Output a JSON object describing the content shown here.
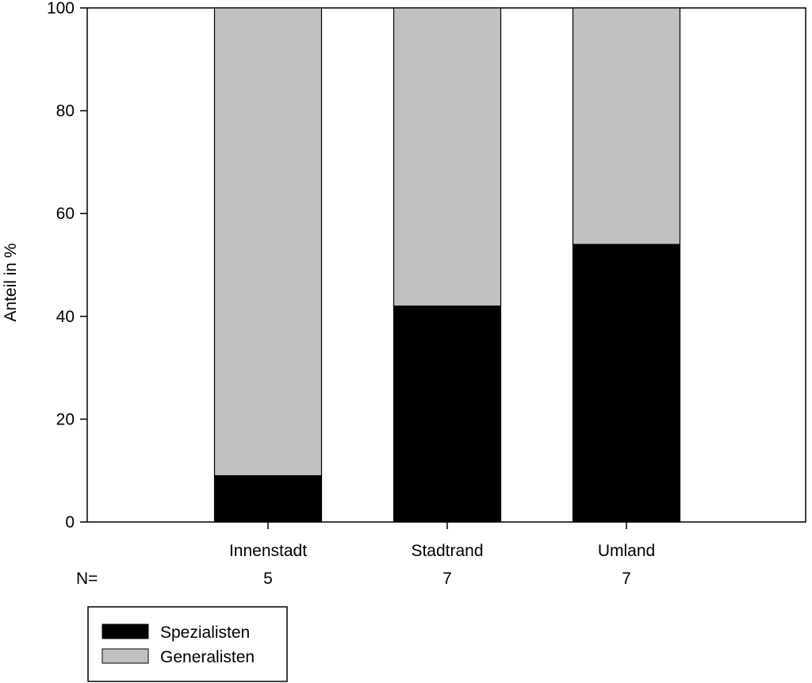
{
  "chart_data": {
    "type": "bar",
    "stacked": true,
    "xlabel": "",
    "ylabel": "Anteil in %",
    "ylim": [
      0,
      100
    ],
    "yticks": [
      "0",
      "20",
      "40",
      "60",
      "80",
      "100"
    ],
    "categories": [
      "Innenstadt",
      "Stadtrand",
      "Umland"
    ],
    "n_label": "N=",
    "n_values": [
      "5",
      "7",
      "7"
    ],
    "series": [
      {
        "name": "Spezialisten",
        "values": [
          9,
          42,
          54
        ],
        "color": "#000000"
      },
      {
        "name": "Generalisten",
        "values": [
          91,
          58,
          46
        ],
        "color": "#c0c0c0"
      }
    ],
    "grid": false,
    "legend_position": "bottom-left"
  }
}
